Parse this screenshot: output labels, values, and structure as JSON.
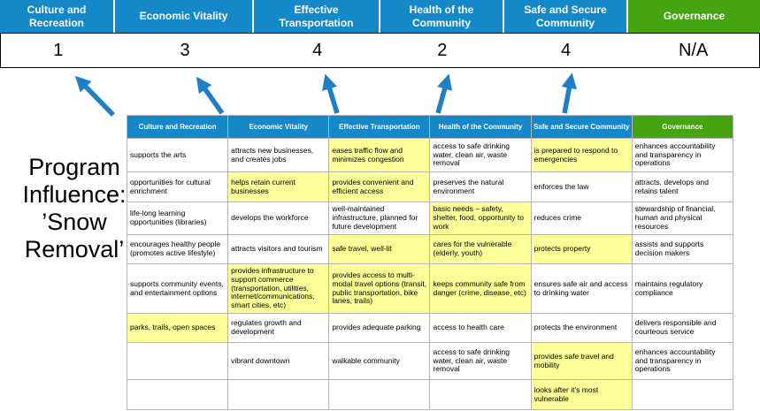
{
  "title": "Program Influence: ’Snow Removal’",
  "colors": {
    "header_blue": "#1588ca",
    "header_green": "#46a410",
    "highlight_yellow": "#ffff99",
    "arrow_blue": "#1e7ec6"
  },
  "scoreboard": {
    "columns": [
      {
        "label": "Culture and Recreation",
        "score": "1",
        "color": "blue"
      },
      {
        "label": "Economic Vitality",
        "score": "3",
        "color": "blue"
      },
      {
        "label": "Effective Transportation",
        "score": "4",
        "color": "blue"
      },
      {
        "label": "Health of the Community",
        "score": "2",
        "color": "blue"
      },
      {
        "label": "Safe and Secure Community",
        "score": "4",
        "color": "blue"
      },
      {
        "label": "Governance",
        "score": "N/A",
        "color": "green"
      }
    ]
  },
  "table": {
    "headers": [
      {
        "label": "Culture and Recreation",
        "color": "blue"
      },
      {
        "label": "Economic Vitality",
        "color": "blue"
      },
      {
        "label": "Effective Transportation",
        "color": "blue"
      },
      {
        "label": "Health of the Community",
        "color": "blue"
      },
      {
        "label": "Safe and Secure Community",
        "color": "blue"
      },
      {
        "label": "Governance",
        "color": "green"
      }
    ],
    "rows": [
      [
        {
          "text": "supports the arts",
          "highlight": false
        },
        {
          "text": "attracts new businesses, and creates jobs",
          "highlight": false
        },
        {
          "text": "eases traffic flow and minimizes congestion",
          "highlight": true
        },
        {
          "text": "access to safe drinking water, clean air, waste removal",
          "highlight": false
        },
        {
          "text": "is prepared to respond to emergencies",
          "highlight": true
        },
        {
          "text": "enhances accountability and transparency in operations",
          "highlight": false
        }
      ],
      [
        {
          "text": "opportunities for cultural enrichment",
          "highlight": false
        },
        {
          "text": "helps retain current businesses",
          "highlight": true
        },
        {
          "text": "provides convenient and efficient access",
          "highlight": true
        },
        {
          "text": "preserves the natural environment",
          "highlight": false
        },
        {
          "text": "enforces the law",
          "highlight": false
        },
        {
          "text": "attracts, develops and retains talent",
          "highlight": false
        }
      ],
      [
        {
          "text": "life-long learning opportunities (libraries)",
          "highlight": false
        },
        {
          "text": "develops the workforce",
          "highlight": false
        },
        {
          "text": "well-maintained infrastructure, planned for future development",
          "highlight": false
        },
        {
          "text": "basic needs – safety, shelter, food, opportunity to work",
          "highlight": true
        },
        {
          "text": "reduces crime",
          "highlight": false
        },
        {
          "text": "stewardship of financial, human and physical resources",
          "highlight": false
        }
      ],
      [
        {
          "text": "encourages healthy people (promotes active lifestyle)",
          "highlight": false
        },
        {
          "text": "attracts visitors and tourism",
          "highlight": false
        },
        {
          "text": "safe travel, well-lit",
          "highlight": true
        },
        {
          "text": "cares for the vulnerable (elderly, youth)",
          "highlight": true
        },
        {
          "text": "protects property",
          "highlight": true
        },
        {
          "text": "assists and supports decision makers",
          "highlight": false
        }
      ],
      [
        {
          "text": "supports community events, and entertainment options",
          "highlight": false
        },
        {
          "text": "provides infrastructure to support commerce (transportation, utilities, internet/communications, smart cities, etc)",
          "highlight": true
        },
        {
          "text": "provides access to multi-modal travel options (transit, public transportation, bike lanes, trails)",
          "highlight": true
        },
        {
          "text": "keeps community safe from danger (crime, disease, etc)",
          "highlight": true
        },
        {
          "text": "ensures safe air and access to drinking water",
          "highlight": false
        },
        {
          "text": "maintains regulatory compliance",
          "highlight": false
        }
      ],
      [
        {
          "text": "parks, trails, open spaces",
          "highlight": true
        },
        {
          "text": "regulates growth and development",
          "highlight": false
        },
        {
          "text": "provides adequate parking",
          "highlight": false
        },
        {
          "text": "access to health care",
          "highlight": false
        },
        {
          "text": "protects the environment",
          "highlight": false
        },
        {
          "text": "delivers responsible and courteous service",
          "highlight": false
        }
      ],
      [
        {
          "text": "",
          "highlight": false
        },
        {
          "text": "vibrant downtown",
          "highlight": false
        },
        {
          "text": "walkable community",
          "highlight": false
        },
        {
          "text": "access to safe drinking water, clean air, waste removal",
          "highlight": false
        },
        {
          "text": "provides safe travel and mobility",
          "highlight": true
        },
        {
          "text": "enhances accountability and transparency in operations",
          "highlight": false
        }
      ],
      [
        {
          "text": "",
          "highlight": false
        },
        {
          "text": "",
          "highlight": false
        },
        {
          "text": "",
          "highlight": false
        },
        {
          "text": "",
          "highlight": false
        },
        {
          "text": "looks after it’s most vulnerable",
          "highlight": true
        },
        {
          "text": "",
          "highlight": false
        }
      ]
    ]
  }
}
